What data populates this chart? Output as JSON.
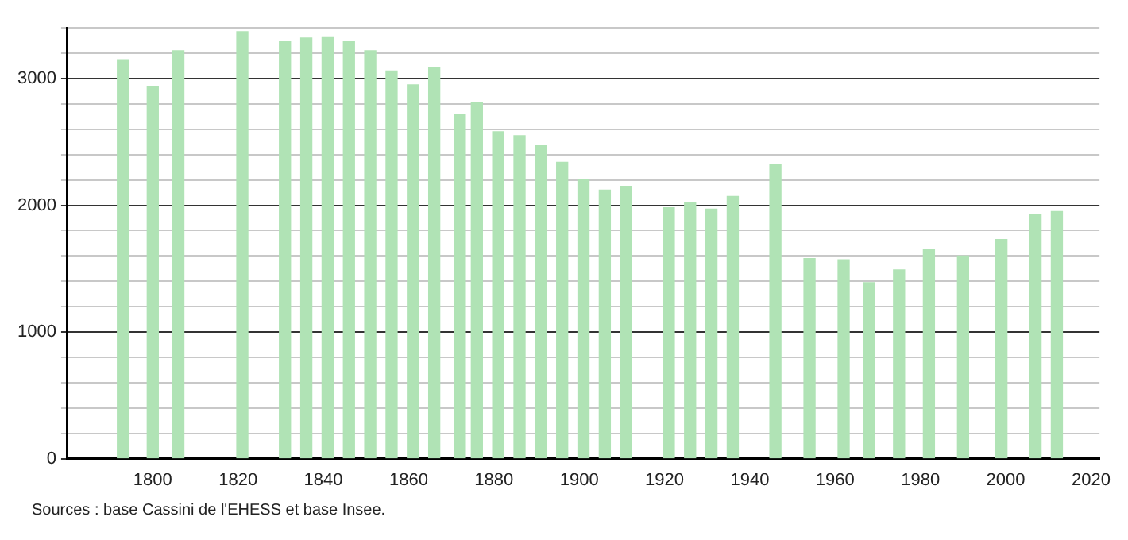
{
  "chart_data": {
    "type": "bar",
    "x": [
      1793,
      1800,
      1806,
      1821,
      1831,
      1836,
      1841,
      1846,
      1851,
      1856,
      1861,
      1866,
      1872,
      1876,
      1881,
      1886,
      1891,
      1896,
      1901,
      1906,
      1911,
      1921,
      1926,
      1931,
      1936,
      1946,
      1954,
      1962,
      1968,
      1975,
      1982,
      1990,
      1999,
      2007,
      2012
    ],
    "values": [
      3150,
      2940,
      3220,
      3370,
      3290,
      3320,
      3330,
      3290,
      3220,
      3060,
      2950,
      3090,
      2720,
      2810,
      2580,
      2550,
      2470,
      2340,
      2200,
      2120,
      2150,
      1980,
      2020,
      1970,
      2070,
      2320,
      1580,
      1570,
      1390,
      1490,
      1650,
      1600,
      1730,
      1930,
      1950
    ],
    "color": "#b0e3b5",
    "xlim": [
      1780,
      2022
    ],
    "xticks": [
      1800,
      1820,
      1840,
      1860,
      1880,
      1900,
      1920,
      1940,
      1960,
      1980,
      2000,
      2020
    ],
    "ylim": [
      0,
      3400
    ],
    "yticks": [
      0,
      {
        "value": 200,
        "label": null
      },
      {
        "value": 400,
        "label": null
      },
      {
        "value": 600,
        "label": null
      },
      {
        "value": 800,
        "label": null
      },
      1000,
      {
        "value": 1200,
        "label": null
      },
      {
        "value": 1400,
        "label": null
      },
      {
        "value": 1600,
        "label": null
      },
      {
        "value": 1800,
        "label": null
      },
      2000,
      {
        "value": 2200,
        "label": null
      },
      {
        "value": 2400,
        "label": null
      },
      {
        "value": 2600,
        "label": null
      },
      {
        "value": 2800,
        "label": null
      },
      3000,
      {
        "value": 3200,
        "label": null
      },
      {
        "value": 3400,
        "label": null
      }
    ],
    "grid": "y",
    "legend": false,
    "annotations": [
      "Sources : base Cassini de l'EHESS et base Insee."
    ]
  }
}
